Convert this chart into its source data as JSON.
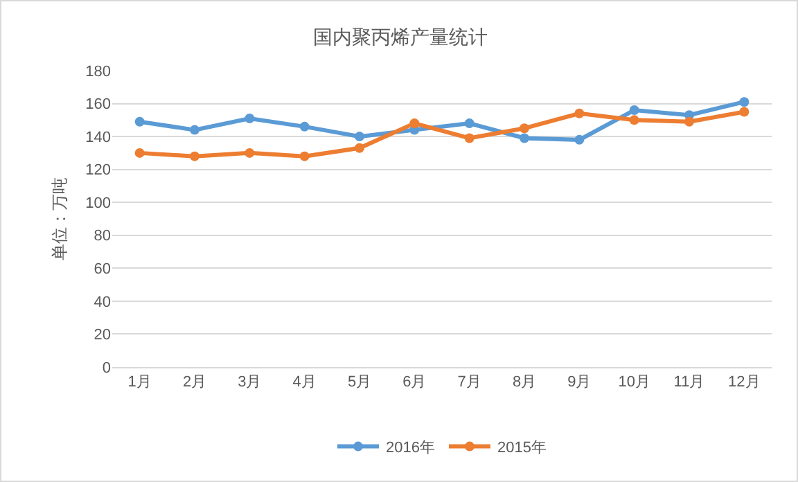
{
  "chart_data": {
    "type": "line",
    "title": "国内聚丙烯产量统计",
    "ylabel": "单位：万吨",
    "categories": [
      "1月",
      "2月",
      "3月",
      "4月",
      "5月",
      "6月",
      "7月",
      "8月",
      "9月",
      "10月",
      "11月",
      "12月"
    ],
    "series": [
      {
        "name": "2016年",
        "color": "#5b9bd5",
        "values": [
          149,
          144,
          151,
          146,
          140,
          144,
          148,
          139,
          138,
          156,
          153,
          161
        ]
      },
      {
        "name": "2015年",
        "color": "#ed7d31",
        "values": [
          130,
          128,
          130,
          128,
          133,
          148,
          139,
          145,
          154,
          150,
          149,
          155
        ]
      }
    ],
    "ylim": [
      0,
      180
    ],
    "yticks": [
      0,
      20,
      40,
      60,
      80,
      100,
      120,
      140,
      160,
      180
    ],
    "grid": "y",
    "legend": "bottom",
    "marker": "circle",
    "line_style": "solid"
  }
}
